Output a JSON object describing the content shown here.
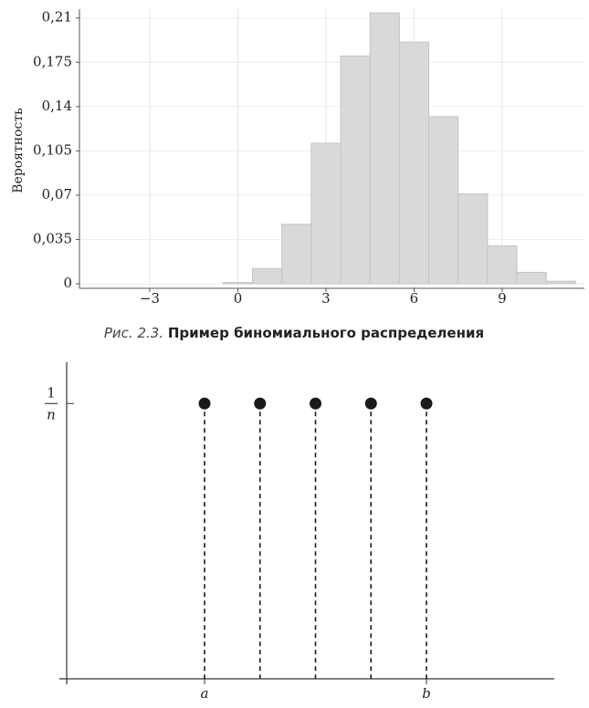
{
  "chart_data": [
    {
      "type": "histogram",
      "ylabel": "Вероятность",
      "bins": [
        -0.5,
        0.5,
        1.5,
        2.5,
        3.5,
        4.5,
        5.5,
        6.5,
        7.5,
        8.5,
        9.5,
        10.5,
        11.5
      ],
      "values": [
        0.001,
        0.012,
        0.047,
        0.111,
        0.18,
        0.214,
        0.191,
        0.132,
        0.071,
        0.03,
        0.009,
        0.002
      ],
      "color": "#d9d9d9",
      "xlim": [
        -5.3,
        11.8
      ],
      "xticks": [
        {
          "value": -3,
          "label": "−3"
        },
        0,
        3,
        6,
        9
      ],
      "ylim": [
        0,
        0.217
      ],
      "yticks": [
        0,
        {
          "value": 0.035,
          "label": "0,035"
        },
        {
          "value": 0.07,
          "label": "0,07"
        },
        {
          "value": 0.105,
          "label": "0,105"
        },
        {
          "value": 0.14,
          "label": "0,14"
        },
        {
          "value": 0.175,
          "label": "0,175"
        },
        {
          "value": 0.21,
          "label": "0,21"
        }
      ],
      "grid": true,
      "caption_label": "Рис. 2.3.",
      "caption_title": "Пример биномиального распределения"
    },
    {
      "type": "stem",
      "categories": [
        "a",
        null,
        null,
        null,
        "b"
      ],
      "values": [
        1,
        1,
        1,
        1,
        1
      ],
      "color": "#1a1a1a",
      "ylim": [
        0,
        1.15
      ],
      "yticks": [
        {
          "value": 1,
          "label": {
            "numerator": "1",
            "denominator": "n"
          }
        }
      ]
    }
  ]
}
